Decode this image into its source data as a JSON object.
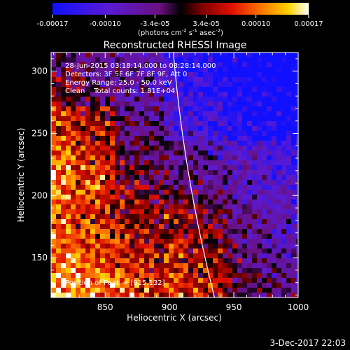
{
  "chart_data": {
    "type": "heatmap",
    "title": "Reconstructed RHESSI Image",
    "xlabel": "Heliocentric X (arcsec)",
    "ylabel": "Heliocentric Y (arcsec)",
    "xlim": [
      808,
      1000
    ],
    "ylim": [
      118,
      315
    ],
    "x_ticks": [
      850,
      900,
      950,
      1000
    ],
    "y_ticks": [
      150,
      200,
      250,
      300
    ],
    "colorbar": {
      "min": -0.00017,
      "max": 0.00017,
      "tick_values": [
        -0.00017,
        -0.0001,
        -3.4e-05,
        3.4e-05,
        0.0001,
        0.00017
      ],
      "tick_labels": [
        "-0.00017",
        "-0.00010",
        "-3.4e-05",
        "3.4e-05",
        "0.00010",
        "0.00017"
      ],
      "units_prefix": "(photons cm",
      "units_exp1": "-2",
      "units_mid": " s",
      "units_exp2": "-1",
      "units_mid2": " asec",
      "units_exp3": "-2",
      "units_suffix": ")"
    },
    "annotations": [
      "28-Jun-2015 03:18:14.000 to 03:28:14.000",
      "Detectors: 3F 5F 6F 7F 8F 9F, Att 0",
      "Energy Range: 25.0 - 50.0 keV",
      "Clean    Total counts: 1.81E+04"
    ],
    "peak_label": "Position of Peak = [915,132]",
    "peak_position": [
      915,
      132
    ],
    "limb": {
      "top": [
        903,
        315
      ],
      "bottom": [
        935,
        118
      ]
    }
  },
  "footer_date": "3-Dec-2017 22:03"
}
